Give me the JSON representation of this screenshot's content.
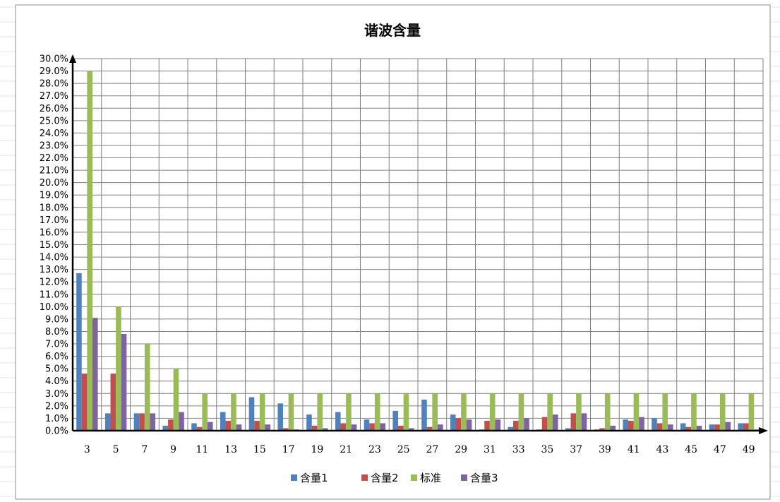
{
  "chart_data": {
    "type": "bar",
    "title": "谐波含量",
    "xlabel": "",
    "ylabel": "",
    "ylim": [
      0,
      30
    ],
    "y_tick_step": 1,
    "y_tick_format": "percent_1dp",
    "grid": true,
    "legend_position": "bottom",
    "categories": [
      "3",
      "5",
      "7",
      "9",
      "11",
      "13",
      "15",
      "17",
      "19",
      "21",
      "23",
      "25",
      "27",
      "29",
      "31",
      "33",
      "35",
      "37",
      "39",
      "41",
      "43",
      "45",
      "47",
      "49"
    ],
    "series": [
      {
        "name": "含量1",
        "color": "#4f81bd",
        "values": [
          12.7,
          1.4,
          1.4,
          0.4,
          0.6,
          1.5,
          2.7,
          2.2,
          1.3,
          1.5,
          0.9,
          1.6,
          2.5,
          1.3,
          0.1,
          0.3,
          0.1,
          0.2,
          0.1,
          0.9,
          1.0,
          0.6,
          0.5,
          0.6
        ]
      },
      {
        "name": "含量2",
        "color": "#c0504d",
        "values": [
          4.6,
          4.6,
          1.4,
          0.9,
          0.3,
          0.8,
          0.8,
          0.2,
          0.4,
          0.6,
          0.6,
          0.4,
          0.3,
          1.0,
          0.8,
          0.8,
          1.1,
          1.4,
          0.2,
          0.8,
          0.6,
          0.3,
          0.5,
          0.6
        ]
      },
      {
        "name": "标准",
        "color": "#9bbb59",
        "values": [
          29.0,
          10.0,
          7.0,
          5.0,
          3.0,
          3.0,
          3.0,
          3.0,
          3.0,
          3.0,
          3.0,
          3.0,
          3.0,
          3.0,
          3.0,
          3.0,
          3.0,
          3.0,
          3.0,
          3.0,
          3.0,
          3.0,
          3.0,
          3.0
        ]
      },
      {
        "name": "含量3",
        "color": "#8064a2",
        "values": [
          9.1,
          7.8,
          1.4,
          1.5,
          0.7,
          0.5,
          0.5,
          0.1,
          0.2,
          0.5,
          0.6,
          0.2,
          0.5,
          0.9,
          0.9,
          1.0,
          1.3,
          1.4,
          0.4,
          1.1,
          0.5,
          0.4,
          0.7,
          0.1
        ]
      }
    ]
  }
}
